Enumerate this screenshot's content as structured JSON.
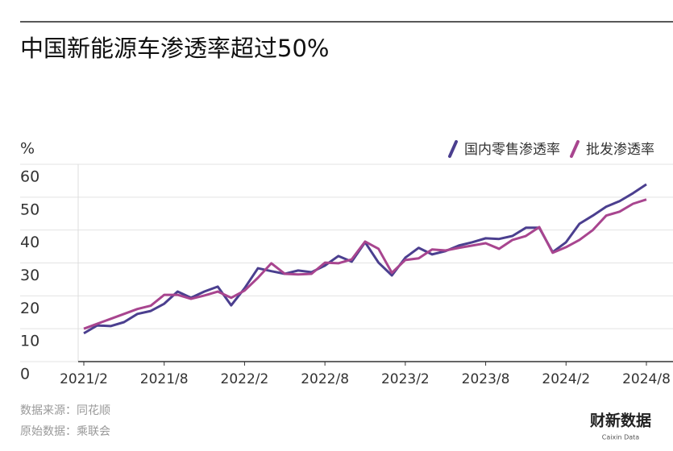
{
  "chart_data": {
    "type": "line",
    "title": "中国新能源车渗透率超过50%",
    "y_label": "%",
    "categories": [
      "2021/2",
      null,
      null,
      null,
      null,
      null,
      "2021/8",
      null,
      null,
      null,
      null,
      null,
      "2022/2",
      null,
      null,
      null,
      null,
      null,
      "2022/8",
      null,
      null,
      null,
      null,
      null,
      "2023/2",
      null,
      null,
      null,
      null,
      null,
      "2023/8",
      null,
      null,
      null,
      null,
      null,
      "2024/2",
      null,
      null,
      null,
      null,
      null,
      "2024/8"
    ],
    "series": [
      {
        "name": "国内零售渗透率",
        "color": "#4b3f8f",
        "values": [
          8.6,
          11,
          10.8,
          12,
          14.5,
          15.4,
          17.6,
          21.3,
          19.4,
          21.3,
          22.8,
          17.1,
          22.3,
          28.4,
          27.5,
          26.7,
          27.7,
          27.2,
          29.2,
          32.1,
          30.4,
          36.3,
          30.1,
          26.2,
          31.6,
          34.6,
          32.6,
          33.6,
          35.3,
          36.3,
          37.5,
          37.3,
          38.2,
          40.7,
          40.7,
          33.3,
          36.3,
          41.9,
          44.4,
          47.1,
          48.8,
          51.2,
          53.9
        ]
      },
      {
        "name": "批发渗透率",
        "color": "#a8458f",
        "values": [
          10,
          11.5,
          13,
          14.5,
          16,
          17,
          20.3,
          20.3,
          19.1,
          20.1,
          21.3,
          19.4,
          21.6,
          25.5,
          29.9,
          26.7,
          26.5,
          26.7,
          30.1,
          29.9,
          31.1,
          36.5,
          34.3,
          27,
          30.9,
          31.4,
          34.1,
          33.8,
          34.6,
          35.3,
          36,
          34.3,
          37,
          38.2,
          40.9,
          33.1,
          34.8,
          37,
          40,
          44.4,
          45.6,
          48,
          49.3
        ]
      }
    ],
    "ylim": [
      0,
      60
    ],
    "yticks": [
      0,
      10,
      20,
      30,
      40,
      50,
      60
    ],
    "grid": true,
    "legend": "top-right",
    "source": "数据来源：同花顺",
    "original_source": "原始数据：乘联会",
    "logo": "财新数据",
    "logo_sub": "Caixin Data"
  }
}
